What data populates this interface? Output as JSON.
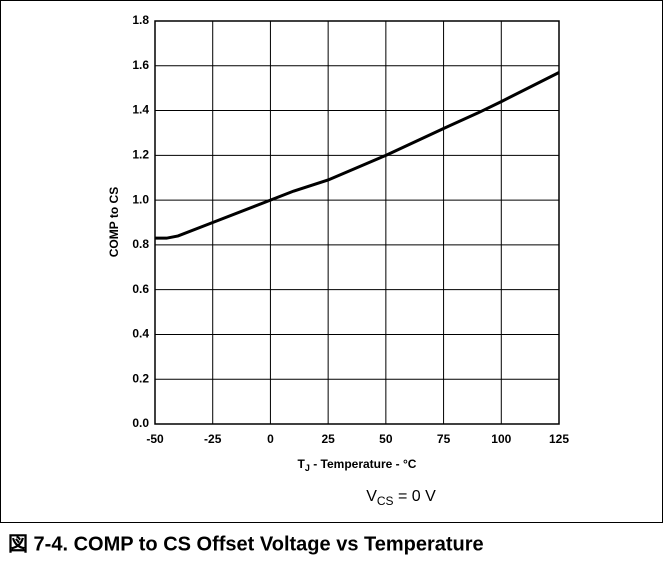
{
  "chart_data": {
    "type": "line",
    "ylabel": "COMP to CS",
    "xlabel": {
      "main": "T",
      "sub": "J",
      "rest": " - Temperature - °C"
    },
    "annotation": {
      "main": "V",
      "sub": "CS",
      "rest": " = 0 V"
    },
    "caption": "図 7-4. COMP to CS Offset Voltage vs Temperature",
    "xlim": [
      -50,
      125
    ],
    "xticks": [
      -50,
      -25,
      0,
      25,
      50,
      75,
      100,
      125
    ],
    "ylim": [
      0,
      1.8
    ],
    "yticks": [
      {
        "value": 0,
        "label": "0.0"
      },
      0.2,
      0.4,
      0.6,
      0.8,
      {
        "value": 1,
        "label": "1.0"
      },
      1.2,
      1.4,
      1.6,
      1.8
    ],
    "grid": true,
    "series": [
      {
        "color": "#000000",
        "x": [
          -50,
          -45,
          -40,
          -25,
          0,
          10,
          25,
          50,
          75,
          90,
          100,
          125
        ],
        "values": [
          0.83,
          0.83,
          0.84,
          0.9,
          1.0,
          1.04,
          1.09,
          1.2,
          1.32,
          1.39,
          1.44,
          1.57
        ]
      }
    ]
  }
}
